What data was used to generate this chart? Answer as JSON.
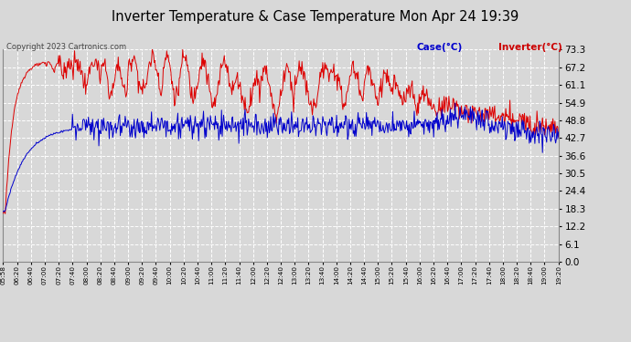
{
  "title": "Inverter Temperature & Case Temperature Mon Apr 24 19:39",
  "copyright": "Copyright 2023 Cartronics.com",
  "legend_case": "Case(°C)",
  "legend_inverter": "Inverter(°C)",
  "yticks": [
    0.0,
    6.1,
    12.2,
    18.3,
    24.4,
    30.5,
    36.6,
    42.7,
    48.8,
    54.9,
    61.1,
    67.2,
    73.3
  ],
  "ymin": 0.0,
  "ymax": 73.3,
  "xtick_labels": [
    "05:58",
    "06:20",
    "06:40",
    "07:00",
    "07:20",
    "07:40",
    "08:00",
    "08:20",
    "08:40",
    "09:00",
    "09:20",
    "09:40",
    "10:00",
    "10:20",
    "10:40",
    "11:00",
    "11:20",
    "11:40",
    "12:00",
    "12:20",
    "12:40",
    "13:00",
    "13:20",
    "13:40",
    "14:00",
    "14:20",
    "14:40",
    "15:00",
    "15:20",
    "15:40",
    "16:00",
    "16:20",
    "16:40",
    "17:00",
    "17:20",
    "17:40",
    "18:00",
    "18:20",
    "18:40",
    "19:00",
    "19:20"
  ],
  "bg_color": "#d8d8d8",
  "plot_bg_color": "#d8d8d8",
  "grid_color": "#ffffff",
  "inverter_color": "#dd0000",
  "case_color": "#0000cc",
  "title_color": "#000000",
  "copyright_color": "#444444",
  "legend_case_color": "#0000cc",
  "legend_inverter_color": "#cc0000"
}
